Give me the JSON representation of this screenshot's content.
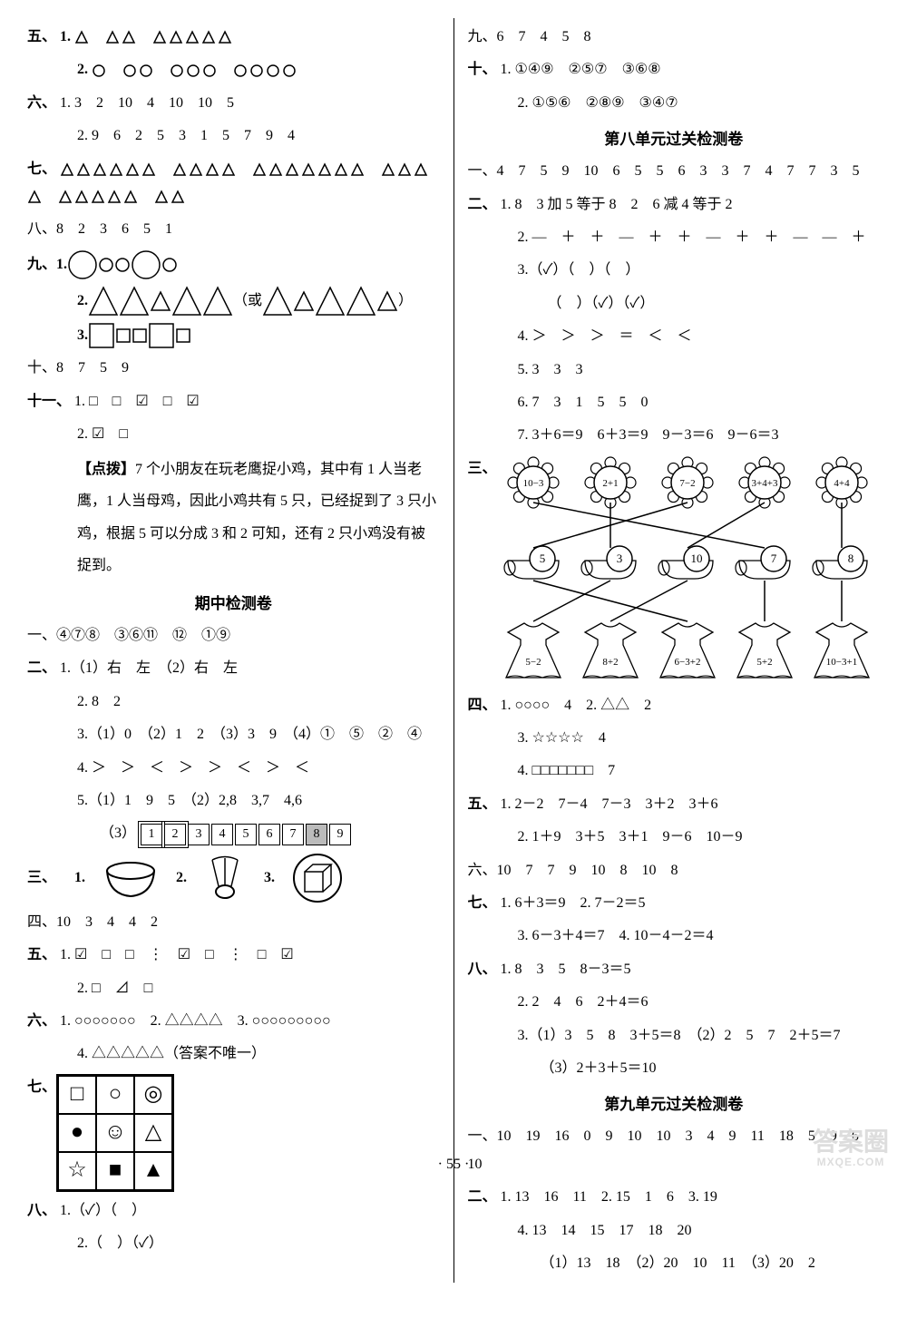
{
  "left": {
    "q5": {
      "label": "五、",
      "i1_label": "1.",
      "i1_triangles": [
        1,
        2,
        5
      ],
      "i2_label": "2.",
      "i2_circles": [
        1,
        2,
        3,
        4
      ]
    },
    "q6": {
      "label": "六、",
      "i1": "1. 3　2　10　4　10　10　5",
      "i2": "2. 9　6　2　5　3　1　5　7　9　4"
    },
    "q7": {
      "label": "七、",
      "groups": [
        6,
        4,
        7,
        4,
        5,
        2
      ]
    },
    "q8": {
      "text": "八、8　2　3　6　5　1"
    },
    "q9": {
      "label": "九、",
      "i1_label": "1.",
      "circles_seq": [
        "L",
        "S",
        "S",
        "L",
        "S"
      ],
      "i2_label": "2.",
      "tri_a": [
        "L",
        "L",
        "S",
        "L",
        "L"
      ],
      "or_text": "（或",
      "tri_b": [
        "L",
        "S",
        "L",
        "L",
        "S"
      ],
      "close": "）",
      "i3_label": "3.",
      "sq_seq": [
        "L",
        "S",
        "S",
        "L",
        "S"
      ]
    },
    "q10": {
      "text": "十、8　7　5　9"
    },
    "q11": {
      "label": "十一、",
      "i1": "1. □　□　☑　□　☑",
      "i2": "2. ☑　□",
      "dianbo_label": "【点拨】",
      "dianbo": "7 个小朋友在玩老鹰捉小鸡，其中有 1 人当老鹰，1 人当母鸡，因此小鸡共有 5 只，已经捉到了 3 只小鸡，根据 5 可以分成 3 和 2 可知，还有 2 只小鸡没有被捉到。"
    },
    "mid_title": "期中检测卷",
    "m1": {
      "text": "一、④⑦⑧　③⑥⑪　⑫　①⑨"
    },
    "m2": {
      "label": "二、",
      "i1": "1.（1）右　左　（2）右　左",
      "i2": "2. 8　2",
      "i3": "3.（1）0　（2）1　2　（3）3　9　（4）①　⑤　②　④",
      "i4": "4. ＞　＞　＜　＞　＞　＜　＞　＜",
      "i5": "5.（1）1　9　5　（2）2,8　3,7　4,6",
      "i5_3_label": "（3）",
      "i5_3_nums": [
        1,
        2,
        3,
        4,
        5,
        6,
        7,
        8,
        9
      ],
      "i5_3_dbl": [
        1,
        2
      ],
      "i5_3_shade": [
        8
      ]
    },
    "m3": {
      "label": "三、",
      "i_labels": [
        "1.",
        "2.",
        "3."
      ]
    },
    "m4": {
      "text": "四、10　3　4　4　2"
    },
    "m5": {
      "label": "五、",
      "i1": "1. ☑　□　□　⋮　☑　□　⋮　□　☑",
      "i2": "2. □　⊿　□"
    },
    "m6": {
      "label": "六、",
      "i1": "1. ○○○○○○○　2. △△△△　3. ○○○○○○○○○",
      "i4": "4. △△△△△（答案不唯一）"
    },
    "m7": {
      "label": "七、",
      "grid": [
        "□",
        "○",
        "◎",
        "●",
        "☺",
        "△",
        "☆",
        "■",
        "▲"
      ]
    },
    "m8": {
      "label": "八、",
      "i1": "1.（✓）（　）",
      "i2": "2.（　）（✓）"
    }
  },
  "right": {
    "q9": {
      "text": "九、6　7　4　5　8"
    },
    "q10": {
      "label": "十、",
      "i1": "1. ①④⑨　②⑤⑦　③⑥⑧",
      "i2": "2. ①⑤⑥　②⑧⑨　③④⑦"
    },
    "u8_title": "第八单元过关检测卷",
    "u8_1": {
      "text": "一、4　7　5　9　10　6　5　5　6　3　3　7　4　7　7　3　5"
    },
    "u8_2": {
      "label": "二、",
      "i1": "1. 8　3 加 5 等于 8　2　6 减 4 等于 2",
      "i2": "2. —　＋　＋　—　＋　＋　—　＋　＋　—　—　＋",
      "i3a": "3.（✓）（　）（　）",
      "i3b": "　（　）（✓）（✓）",
      "i4": "4. ＞　＞　＞　＝　＜　＜",
      "i5": "5. 3　3　3",
      "i6": "6. 7　3　1　5　5　0",
      "i7": "7. 3＋6＝9　6＋3＝9　9－3＝6　9－6＝3"
    },
    "u8_3": {
      "label": "三、",
      "flowers": [
        "10−3",
        "2+1",
        "7−2",
        "3+4+3",
        "4+4"
      ],
      "mid_nums": [
        "5",
        "3",
        "10",
        "7",
        "8"
      ],
      "dresses": [
        "5−2",
        "8+2",
        "6−3+2",
        "5+2",
        "10−3+1"
      ]
    },
    "u8_4": {
      "label": "四、",
      "i1": "1. ○○○○　4　2. △△　2",
      "i3": "3. ☆☆☆☆　4",
      "i4": "4. □□□□□□□　7"
    },
    "u8_5": {
      "label": "五、",
      "i1": "1. 2－2　7－4　7－3　3＋2　3＋6",
      "i2": "2. 1＋9　3＋5　3＋1　9－6　10－9"
    },
    "u8_6": {
      "text": "六、10　7　7　9　10　8　10　8"
    },
    "u8_7": {
      "label": "七、",
      "i12": "1. 6＋3＝9　2. 7－2＝5",
      "i34": "3. 6－3＋4＝7　4. 10－4－2＝4"
    },
    "u8_8": {
      "label": "八、",
      "i1": "1. 8　3　5　8－3＝5",
      "i2": "2. 2　4　6　2＋4＝6",
      "i3": "3.（1）3　5　8　3＋5＝8　（2）2　5　7　2＋5＝7",
      "i3b": "（3）2＋3＋5＝10"
    },
    "u9_title": "第九单元过关检测卷",
    "u9_1": {
      "text": "一、10　19　16　0　9　10　10　3　4　9　11　18　5　9　6　10"
    },
    "u9_2": {
      "label": "二、",
      "i1": "1. 13　16　11　2. 15　1　6　3. 19",
      "i4": "4. 13　14　15　17　18　20",
      "i4b": "（1）13　18　（2）20　10　11　（3）20　2"
    }
  },
  "pagenum": "· 55 ·",
  "watermark_big": "答案圈",
  "watermark_sm": "MXQE.COM",
  "colors": {
    "text": "#000000",
    "bg": "#ffffff",
    "shade": "#bbbbbb",
    "wm": "#dddddd"
  }
}
